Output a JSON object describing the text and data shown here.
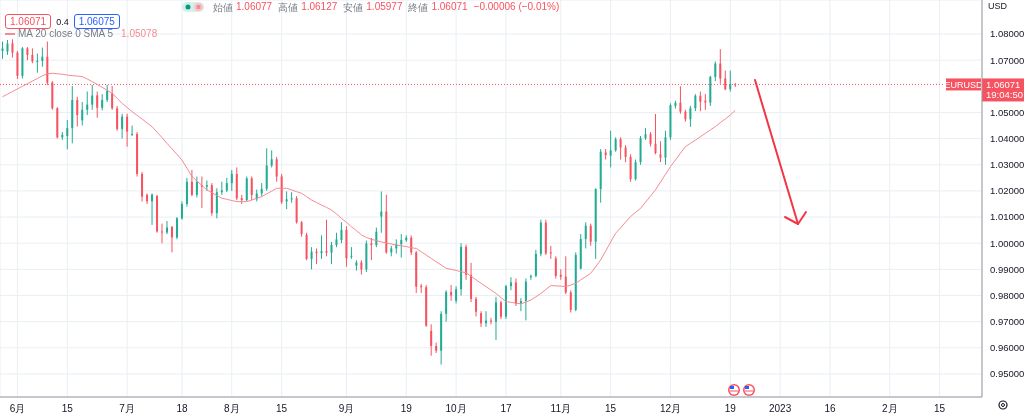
{
  "chart_data": {
    "type": "candlestick",
    "categories": [
      null,
      null,
      null,
      "6月",
      null,
      null,
      null,
      null,
      null,
      null,
      null,
      null,
      null,
      "15",
      null,
      null,
      null,
      null,
      null,
      null,
      null,
      null,
      null,
      null,
      null,
      "7月",
      null,
      null,
      null,
      null,
      null,
      null,
      null,
      null,
      null,
      null,
      "18",
      null,
      null,
      null,
      null,
      null,
      null,
      null,
      null,
      null,
      "8月",
      null,
      null,
      null,
      null,
      null,
      null,
      null,
      null,
      null,
      "15",
      null,
      null,
      null,
      null,
      null,
      null,
      null,
      null,
      null,
      null,
      null,
      null,
      "9月",
      null,
      null,
      null,
      null,
      null,
      null,
      null,
      null,
      null,
      null,
      null,
      "19",
      null,
      null,
      null,
      null,
      null,
      null,
      null,
      null,
      null,
      "10月",
      null,
      null,
      null,
      null,
      null,
      null,
      null,
      null,
      null,
      "17",
      null,
      null,
      null,
      null,
      null,
      null,
      null,
      null,
      null,
      null,
      "11月",
      null,
      null,
      null,
      null,
      null,
      null,
      null,
      null,
      null,
      "15",
      null,
      null,
      null,
      null,
      null,
      null,
      null,
      null,
      null,
      null,
      null,
      "12月",
      null,
      null,
      null,
      null,
      null,
      null,
      null,
      null,
      null,
      null,
      null,
      "19",
      null,
      null,
      null,
      null,
      null,
      null,
      null,
      null,
      null,
      "2023",
      null,
      null,
      null,
      null,
      null,
      null,
      null,
      null,
      null,
      "16",
      null,
      null,
      null,
      null,
      null,
      null,
      null,
      null,
      null,
      null,
      null,
      "2月",
      null,
      null,
      null,
      null,
      null,
      null,
      null,
      null,
      null,
      "15",
      null,
      null,
      null,
      null,
      null,
      null,
      null,
      null
    ],
    "ohlc": [
      [
        1.0735,
        1.0771,
        1.0705,
        1.0745
      ],
      [
        1.0733,
        1.0777,
        1.072,
        1.0764
      ],
      [
        1.0764,
        1.078,
        1.071,
        1.0729
      ],
      [
        1.0729,
        1.0735,
        1.0628,
        1.064
      ],
      [
        1.064,
        1.075,
        1.063,
        1.0745
      ],
      [
        1.0745,
        1.075,
        1.07,
        1.072
      ],
      [
        1.072,
        1.0745,
        1.0688,
        1.0695
      ],
      [
        1.0693,
        1.0725,
        1.0652,
        1.0697
      ],
      [
        1.0697,
        1.0748,
        1.0675,
        1.0713
      ],
      [
        1.0713,
        1.0771,
        1.0605,
        1.0614
      ],
      [
        1.0614,
        1.062,
        1.051,
        1.0516
      ],
      [
        1.0516,
        1.052,
        1.04,
        1.0405
      ],
      [
        1.0405,
        1.0425,
        1.0395,
        1.0414
      ],
      [
        1.041,
        1.0471,
        1.0359,
        1.044
      ],
      [
        1.044,
        1.0601,
        1.0382,
        1.0548
      ],
      [
        1.0548,
        1.056,
        1.0446,
        1.049
      ],
      [
        1.047,
        1.054,
        1.045,
        1.051
      ],
      [
        1.051,
        1.058,
        1.049,
        1.053
      ],
      [
        1.053,
        1.0605,
        1.051,
        1.0565
      ],
      [
        1.0565,
        1.058,
        1.048,
        1.0518
      ],
      [
        1.0518,
        1.057,
        1.0508,
        1.0548
      ],
      [
        1.0548,
        1.0605,
        1.054,
        1.0583
      ],
      [
        1.0573,
        1.0601,
        1.051,
        1.0516
      ],
      [
        1.0516,
        1.0525,
        1.043,
        1.0437
      ],
      [
        1.0437,
        1.0495,
        1.04,
        1.0484
      ],
      [
        1.0484,
        1.0495,
        1.0369,
        1.0427
      ],
      [
        1.0414,
        1.045,
        1.041,
        1.0418
      ],
      [
        1.0418,
        1.0425,
        1.0255,
        1.0265
      ],
      [
        1.0265,
        1.0272,
        1.016,
        1.0178
      ],
      [
        1.0185,
        1.019,
        1.015,
        1.016
      ],
      [
        1.016,
        1.019,
        1.007,
        1.0186
      ],
      [
        1.018,
        1.0185,
        1.004,
        1.0045
      ],
      [
        1.0045,
        1.0075,
        1.0,
        1.0041
      ],
      [
        1.0041,
        1.0085,
        1.0035,
        1.006
      ],
      [
        1.0063,
        1.0065,
        0.9965,
        1.0022
      ],
      [
        1.0022,
        1.01,
        1.0015,
        1.0095
      ],
      [
        1.0095,
        1.016,
        1.009,
        1.015
      ],
      [
        1.015,
        1.025,
        1.014,
        1.0235
      ],
      [
        1.0235,
        1.028,
        1.018,
        1.0185
      ],
      [
        1.0185,
        1.0255,
        1.0175,
        1.0235
      ],
      [
        1.0222,
        1.0255,
        1.0135,
        1.0216
      ],
      [
        1.0216,
        1.024,
        1.02,
        1.0222
      ],
      [
        1.0222,
        1.023,
        1.0105,
        1.0115
      ],
      [
        1.0115,
        1.021,
        1.0095,
        1.0195
      ],
      [
        1.0195,
        1.0235,
        1.0185,
        1.0202
      ],
      [
        1.0202,
        1.025,
        1.0195,
        1.023
      ],
      [
        1.023,
        1.028,
        1.02,
        1.0265
      ],
      [
        1.0265,
        1.029,
        1.0165,
        1.0172
      ],
      [
        1.0172,
        1.0185,
        1.015,
        1.0165
      ],
      [
        1.0165,
        1.0255,
        1.016,
        1.0248
      ],
      [
        1.0248,
        1.0255,
        1.0165,
        1.0185
      ],
      [
        1.0168,
        1.0205,
        1.016,
        1.019
      ],
      [
        1.019,
        1.023,
        1.018,
        1.0208
      ],
      [
        1.0208,
        1.0363,
        1.02,
        1.0297
      ],
      [
        1.0297,
        1.0355,
        1.029,
        1.0321
      ],
      [
        1.0321,
        1.033,
        1.0235,
        1.0255
      ],
      [
        1.0255,
        1.0265,
        1.015,
        1.0157
      ],
      [
        1.016,
        1.0198,
        1.013,
        1.0168
      ],
      [
        1.0168,
        1.0195,
        1.0155,
        1.0172
      ],
      [
        1.0172,
        1.018,
        1.0075,
        1.008
      ],
      [
        1.008,
        1.0085,
        1.0025,
        1.0035
      ],
      [
        1.0032,
        1.004,
        0.9935,
        0.994
      ],
      [
        0.994,
        0.9985,
        0.99,
        0.9968
      ],
      [
        0.9968,
        0.998,
        0.992,
        0.9962
      ],
      [
        0.9962,
        1.003,
        0.994,
        0.997
      ],
      [
        0.997,
        1.009,
        0.995,
        0.9964
      ],
      [
        0.9964,
        1.0005,
        0.992,
        0.9993
      ],
      [
        0.9993,
        1.004,
        0.9985,
        1.0015
      ],
      [
        1.0012,
        1.008,
        1.0,
        1.0051
      ],
      [
        1.0051,
        1.0065,
        0.991,
        0.9942
      ],
      [
        0.9948,
        0.9985,
        0.994,
        0.9952
      ],
      [
        0.9914,
        0.9935,
        0.9895,
        0.9927
      ],
      [
        0.9927,
        0.9935,
        0.988,
        0.99
      ],
      [
        0.99,
        1.001,
        0.989,
        0.9999
      ],
      [
        0.9999,
        1.002,
        0.9935,
        0.9993
      ],
      [
        0.9993,
        1.006,
        0.9985,
        1.0044
      ],
      [
        1.0102,
        1.0198,
        1.004,
        1.0121
      ],
      [
        1.0121,
        1.0185,
        0.996,
        0.9965
      ],
      [
        0.9965,
        0.999,
        0.995,
        0.998
      ],
      [
        0.998,
        1.0015,
        0.996,
        0.9996
      ],
      [
        0.9996,
        1.0035,
        0.9945,
        1.0012
      ],
      [
        1.0012,
        1.003,
        1.0005,
        1.0021
      ],
      [
        1.0021,
        1.003,
        0.9955,
        0.9965
      ],
      [
        0.9965,
        0.997,
        0.981,
        0.9834
      ],
      [
        0.9837,
        0.9845,
        0.981,
        0.9832
      ],
      [
        0.9832,
        0.984,
        0.968,
        0.9685
      ],
      [
        0.9665,
        0.969,
        0.957,
        0.9607
      ],
      [
        0.9607,
        0.962,
        0.958,
        0.9589
      ],
      [
        0.9589,
        0.974,
        0.9536,
        0.973
      ],
      [
        0.973,
        0.982,
        0.97,
        0.9814
      ],
      [
        0.9814,
        0.984,
        0.978,
        0.98
      ],
      [
        0.978,
        0.9835,
        0.977,
        0.9824
      ],
      [
        0.9824,
        1.0,
        0.98,
        0.9986
      ],
      [
        0.9986,
        0.9995,
        0.986,
        0.9879
      ],
      [
        0.9879,
        0.9925,
        0.9775,
        0.9787
      ],
      [
        0.9787,
        0.9795,
        0.972,
        0.9738
      ],
      [
        0.9732,
        0.974,
        0.968,
        0.9694
      ],
      [
        0.9694,
        0.974,
        0.968,
        0.9704
      ],
      [
        0.9704,
        0.9715,
        0.969,
        0.97
      ],
      [
        0.97,
        0.9795,
        0.963,
        0.9774
      ],
      [
        0.9774,
        0.978,
        0.971,
        0.9719
      ],
      [
        0.9719,
        0.984,
        0.971,
        0.9836
      ],
      [
        0.9836,
        0.987,
        0.982,
        0.985
      ],
      [
        0.985,
        0.9865,
        0.976,
        0.9768
      ],
      [
        0.9768,
        0.979,
        0.974,
        0.9779
      ],
      [
        0.9779,
        0.9865,
        0.9705,
        0.9853
      ],
      [
        0.987,
        0.988,
        0.986,
        0.9875
      ],
      [
        0.9875,
        0.9975,
        0.987,
        0.9959
      ],
      [
        0.9959,
        1.009,
        0.995,
        1.0079
      ],
      [
        1.0079,
        1.009,
        0.9955,
        0.9961
      ],
      [
        0.9965,
        0.999,
        0.994,
        0.9961
      ],
      [
        0.9942,
        0.995,
        0.9865,
        0.9875
      ],
      [
        0.9879,
        0.99,
        0.986,
        0.9872
      ],
      [
        0.9872,
        0.995,
        0.9805,
        0.9812
      ],
      [
        0.9812,
        0.982,
        0.9735,
        0.9745
      ],
      [
        0.9745,
        0.9965,
        0.974,
        0.9955
      ],
      [
        0.9903,
        1.0035,
        0.99,
        1.0016
      ],
      [
        1.0016,
        1.008,
        0.998,
        1.0067
      ],
      [
        1.0067,
        1.0075,
        0.999,
        1.0006
      ],
      [
        1.0006,
        1.021,
        0.994,
        1.0207
      ],
      [
        1.0207,
        1.036,
        1.0155,
        1.035
      ],
      [
        1.0347,
        1.036,
        1.032,
        1.0337
      ],
      [
        1.0335,
        1.043,
        1.029,
        1.0355
      ],
      [
        1.0355,
        1.0405,
        1.035,
        1.0398
      ],
      [
        1.0398,
        1.0405,
        1.032,
        1.0366
      ],
      [
        1.0366,
        1.0375,
        1.031,
        1.033
      ],
      [
        1.033,
        1.034,
        1.0235,
        1.0245
      ],
      [
        1.0245,
        1.032,
        1.024,
        1.031
      ],
      [
        1.031,
        1.041,
        1.03,
        1.0402
      ],
      [
        1.0402,
        1.044,
        1.0395,
        1.0417
      ],
      [
        1.0417,
        1.0425,
        1.037,
        1.038
      ],
      [
        1.038,
        1.0494,
        1.034,
        1.0345
      ],
      [
        1.034,
        1.039,
        1.031,
        1.0327
      ],
      [
        1.0327,
        1.043,
        1.03,
        1.0405
      ],
      [
        1.0405,
        1.0535,
        1.0395,
        1.0528
      ],
      [
        1.0525,
        1.0545,
        1.0515,
        1.0537
      ],
      [
        1.0537,
        1.06,
        1.0495,
        1.0503
      ],
      [
        1.0503,
        1.051,
        1.0465,
        1.0474
      ],
      [
        1.0474,
        1.0525,
        1.0445,
        1.0516
      ],
      [
        1.0516,
        1.057,
        1.0505,
        1.0564
      ],
      [
        1.0564,
        1.058,
        1.0505,
        1.0541
      ],
      [
        1.0545,
        1.057,
        1.051,
        1.0538
      ],
      [
        1.0538,
        1.064,
        1.0525,
        1.0636
      ],
      [
        1.0636,
        1.0695,
        1.062,
        1.0687
      ],
      [
        1.0687,
        1.0742,
        1.061,
        1.063
      ],
      [
        1.063,
        1.066,
        1.0585,
        1.0589
      ],
      [
        1.0589,
        1.066,
        1.058,
        1.0608
      ],
      [
        1.06077,
        1.06127,
        1.05977,
        1.06071
      ],
      null,
      null,
      null,
      null,
      null,
      null,
      null,
      null,
      null,
      null,
      null,
      null,
      null,
      null,
      null,
      null,
      null,
      null,
      null,
      null,
      null,
      null,
      null,
      null,
      null,
      null,
      null,
      null,
      null,
      null,
      null,
      null,
      null,
      null,
      null,
      null,
      null,
      null,
      null,
      null,
      null,
      null,
      null,
      null,
      null,
      null,
      null,
      null,
      null
    ],
    "colors": [
      "#22ab94",
      "#22ab94",
      "#f7525f",
      "#f7525f",
      "#22ab94",
      "#f7525f",
      "#f7525f",
      "#22ab94",
      "#22ab94",
      "#f7525f",
      "#f7525f",
      "#f7525f",
      "#22ab94",
      "#22ab94",
      "#22ab94",
      "#f7525f",
      "#22ab94",
      "#22ab94",
      "#22ab94",
      "#f7525f",
      "#22ab94",
      "#22ab94",
      "#f7525f",
      "#f7525f",
      "#22ab94",
      "#f7525f",
      "#22ab94",
      "#f7525f",
      "#f7525f",
      "#f7525f",
      "#22ab94",
      "#f7525f",
      "#f7525f",
      "#22ab94",
      "#f7525f",
      "#22ab94",
      "#22ab94",
      "#22ab94",
      "#f7525f",
      "#22ab94",
      "#f7525f",
      "#22ab94",
      "#f7525f",
      "#22ab94",
      "#22ab94",
      "#22ab94",
      "#22ab94",
      "#f7525f",
      "#f7525f",
      "#22ab94",
      "#f7525f",
      "#22ab94",
      "#22ab94",
      "#22ab94",
      "#22ab94",
      "#f7525f",
      "#f7525f",
      "#22ab94",
      "#22ab94",
      "#f7525f",
      "#f7525f",
      "#f7525f",
      "#22ab94",
      "#f7525f",
      "#22ab94",
      "#f7525f",
      "#22ab94",
      "#22ab94",
      "#22ab94",
      "#f7525f",
      "#22ab94",
      "#22ab94",
      "#f7525f",
      "#22ab94",
      "#f7525f",
      "#22ab94",
      "#22ab94",
      "#f7525f",
      "#22ab94",
      "#22ab94",
      "#22ab94",
      "#22ab94",
      "#f7525f",
      "#f7525f",
      "#f7525f",
      "#f7525f",
      "#f7525f",
      "#f7525f",
      "#22ab94",
      "#22ab94",
      "#f7525f",
      "#22ab94",
      "#22ab94",
      "#f7525f",
      "#f7525f",
      "#f7525f",
      "#f7525f",
      "#22ab94",
      "#f7525f",
      "#22ab94",
      "#f7525f",
      "#22ab94",
      "#22ab94",
      "#f7525f",
      "#22ab94",
      "#22ab94",
      "#22ab94",
      "#22ab94",
      "#22ab94",
      "#f7525f",
      "#f7525f",
      "#f7525f",
      "#f7525f",
      "#f7525f",
      "#f7525f",
      "#22ab94",
      "#22ab94",
      "#22ab94",
      "#f7525f",
      "#22ab94",
      "#22ab94",
      "#f7525f",
      "#22ab94",
      "#22ab94",
      "#f7525f",
      "#f7525f",
      "#f7525f",
      "#22ab94",
      "#22ab94",
      "#22ab94",
      "#f7525f",
      "#f7525f",
      "#f7525f",
      "#22ab94",
      "#22ab94",
      "#22ab94",
      "#f7525f",
      "#f7525f",
      "#22ab94",
      "#22ab94",
      "#f7525f",
      "#f7525f",
      "#22ab94",
      "#22ab94",
      "#f7525f",
      "#f7525f",
      "#22ab94",
      "#f7525f",
      null,
      null,
      null,
      null,
      null,
      null,
      null,
      null,
      null,
      null,
      null,
      null,
      null,
      null,
      null,
      null,
      null,
      null,
      null,
      null,
      null,
      null,
      null,
      null,
      null,
      null,
      null,
      null,
      null,
      null,
      null,
      null,
      null,
      null,
      null,
      null,
      null,
      null,
      null,
      null,
      null,
      null,
      null,
      null,
      null,
      null,
      null,
      null,
      null
    ],
    "series": [
      {
        "name": "MA 20 close 0 SMA 5",
        "type": "line",
        "color": "#f48b93",
        "values": [
          1.056,
          1.057,
          1.058,
          1.059,
          1.06,
          1.061,
          1.062,
          1.063,
          1.064,
          1.0648,
          1.065,
          1.0648,
          1.0646,
          1.0643,
          1.0641,
          1.0639,
          1.0637,
          1.0628,
          1.0618,
          1.0607,
          1.0596,
          1.0585,
          1.0573,
          1.0554,
          1.0535,
          1.0519,
          1.0503,
          1.0489,
          1.0475,
          1.046,
          1.0446,
          1.0425,
          1.0404,
          1.0382,
          1.0361,
          1.034,
          1.0318,
          1.0287,
          1.0255,
          1.0238,
          1.0221,
          1.0204,
          1.0193,
          1.0183,
          1.0172,
          1.0168,
          1.0163,
          1.0159,
          1.0159,
          1.0159,
          1.0165,
          1.0172,
          1.0178,
          1.0189,
          1.0199,
          1.021,
          1.021,
          1.021,
          1.0204,
          1.0197,
          1.0191,
          1.0178,
          1.0165,
          1.0156,
          1.0146,
          1.0137,
          1.0127,
          1.0112,
          1.0095,
          1.008,
          1.0063,
          1.0048,
          1.0032,
          1.0022,
          1.0015,
          1.001,
          1.0005,
          1.0001,
          0.9997,
          0.9993,
          0.999,
          0.9987,
          0.9983,
          0.998,
          0.9967,
          0.9955,
          0.9942,
          0.9929,
          0.9917,
          0.9904,
          0.99,
          0.9896,
          0.9891,
          0.9887,
          0.9874,
          0.986,
          0.9847,
          0.9834,
          0.9821,
          0.9808,
          0.9792,
          0.9777,
          0.9774,
          0.9771,
          0.9768,
          0.9775,
          0.9783,
          0.9795,
          0.9808,
          0.9823,
          0.9838,
          0.9837,
          0.9836,
          0.9834,
          0.984,
          0.9847,
          0.986,
          0.9872,
          0.9885,
          0.991,
          0.9936,
          0.997,
          1.0004,
          1.0038,
          1.0059,
          1.0081,
          1.0102,
          1.0118,
          1.0133,
          1.0157,
          1.018,
          1.0204,
          1.0234,
          1.0263,
          1.0293,
          1.0318,
          1.0344,
          1.0369,
          1.0382,
          1.0394,
          1.0407,
          1.042,
          1.0433,
          1.0446,
          1.0461,
          1.0475,
          1.049,
          1.0508,
          null,
          null,
          null,
          null,
          null,
          null,
          null,
          null,
          null,
          null,
          null,
          null,
          null,
          null,
          null,
          null,
          null,
          null,
          null,
          null,
          null,
          null,
          null,
          null,
          null,
          null,
          null,
          null,
          null,
          null,
          null,
          null,
          null,
          null,
          null,
          null,
          null,
          null,
          null,
          null,
          null,
          null,
          null,
          null,
          null,
          null,
          null,
          null,
          null
        ]
      }
    ],
    "ylim": [
      0.9412,
      1.093
    ],
    "yticks": [
      {
        "value": 0.95,
        "label": "0.95000"
      },
      {
        "value": 0.96,
        "label": "0.96000"
      },
      {
        "value": 0.97,
        "label": "0.97000"
      },
      {
        "value": 0.98,
        "label": "0.98000"
      },
      {
        "value": 0.99,
        "label": "0.99000"
      },
      {
        "value": 1.0,
        "label": "1.00000"
      },
      {
        "value": 1.01,
        "label": "1.01000"
      },
      {
        "value": 1.02,
        "label": "1.02000"
      },
      {
        "value": 1.03,
        "label": "1.03000"
      },
      {
        "value": 1.04,
        "label": "1.04000"
      },
      {
        "value": 1.05,
        "label": "1.05000"
      },
      {
        "value": 1.07,
        "label": "1.07000"
      },
      {
        "value": 1.08,
        "label": "1.08000"
      }
    ],
    "ref_lines": [
      {
        "axis": "y",
        "value": 1.06071,
        "label": "EURUSD",
        "color": "#f7525f",
        "line_style": "dotted"
      }
    ],
    "annotations": [
      "始値",
      "1.06077",
      "高値",
      "1.06127",
      "安値",
      "1.05977",
      "終値",
      "1.06071",
      "−0.00006 (−0.01%)",
      "1.06071",
      "0.4",
      "1.06075",
      "1.05078",
      "USD",
      "19:04:50"
    ],
    "grid": true,
    "legend": "top left"
  }
}
